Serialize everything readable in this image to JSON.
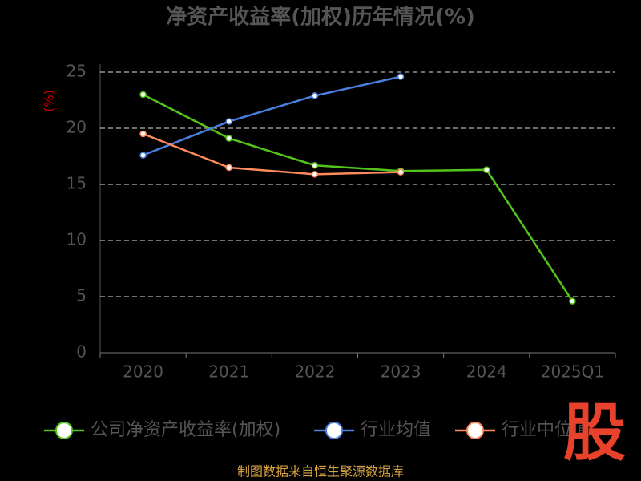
{
  "chart_data": {
    "type": "line",
    "title": "净资产收益率(加权)历年情况(%)",
    "y_label": "(%)",
    "categories": [
      "2020",
      "2021",
      "2022",
      "2023",
      "2024",
      "2025Q1"
    ],
    "series": [
      {
        "name": "公司净资产收益率(加权)",
        "color": "#52c41a",
        "values": [
          23.0,
          19.1,
          16.7,
          16.2,
          16.3,
          4.6
        ]
      },
      {
        "name": "行业均值",
        "color": "#4a7fe0",
        "values": [
          17.6,
          20.6,
          22.9,
          24.6,
          null,
          null
        ]
      },
      {
        "name": "行业中位值",
        "color": "#ff8a5c",
        "values": [
          19.5,
          16.5,
          15.9,
          16.1,
          null,
          null
        ]
      }
    ],
    "ylim": [
      0,
      25
    ],
    "yticks": [
      0,
      5,
      10,
      15,
      20,
      25
    ],
    "grid": true,
    "logo": "股",
    "source": "制图数据来自恒生聚源数据库"
  }
}
